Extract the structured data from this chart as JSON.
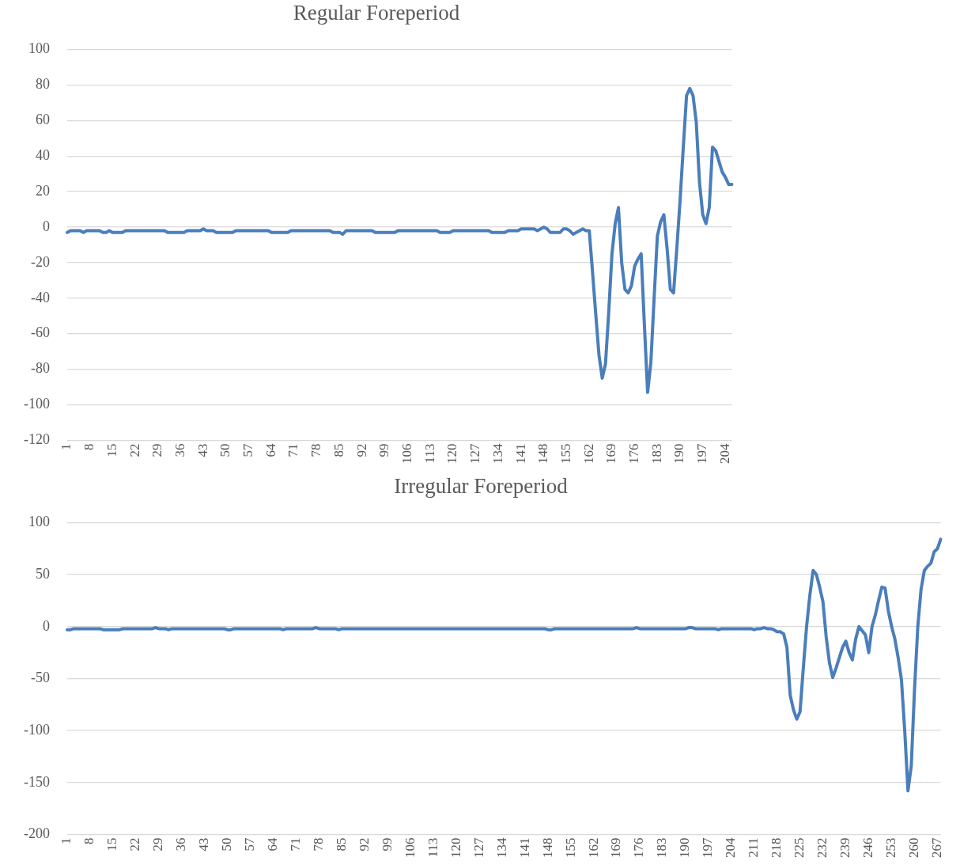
{
  "chart_data": [
    {
      "type": "line",
      "title": "Regular Foreperiod",
      "color": "#4a7ebb",
      "grid": "y",
      "ylim": [
        -120,
        100
      ],
      "yticks": [
        -120,
        -100,
        -80,
        -60,
        -40,
        -20,
        0,
        20,
        40,
        60,
        80,
        100
      ],
      "categories": [
        "1",
        null,
        null,
        null,
        null,
        null,
        null,
        "8",
        null,
        null,
        null,
        null,
        null,
        null,
        "15",
        null,
        null,
        null,
        null,
        null,
        null,
        "22",
        null,
        null,
        null,
        null,
        null,
        null,
        "29",
        null,
        null,
        null,
        null,
        null,
        null,
        "36",
        null,
        null,
        null,
        null,
        null,
        null,
        "43",
        null,
        null,
        null,
        null,
        null,
        null,
        "50",
        null,
        null,
        null,
        null,
        null,
        null,
        "57",
        null,
        null,
        null,
        null,
        null,
        null,
        "64",
        null,
        null,
        null,
        null,
        null,
        null,
        "71",
        null,
        null,
        null,
        null,
        null,
        null,
        "78",
        null,
        null,
        null,
        null,
        null,
        null,
        "85",
        null,
        null,
        null,
        null,
        null,
        null,
        "92",
        null,
        null,
        null,
        null,
        null,
        null,
        "99",
        null,
        null,
        null,
        null,
        null,
        null,
        "106",
        null,
        null,
        null,
        null,
        null,
        null,
        "113",
        null,
        null,
        null,
        null,
        null,
        null,
        "120",
        null,
        null,
        null,
        null,
        null,
        null,
        "127",
        null,
        null,
        null,
        null,
        null,
        null,
        "134",
        null,
        null,
        null,
        null,
        null,
        null,
        "141",
        null,
        null,
        null,
        null,
        null,
        null,
        "148",
        null,
        null,
        null,
        null,
        null,
        null,
        "155",
        null,
        null,
        null,
        null,
        null,
        null,
        "162",
        null,
        null,
        null,
        null,
        null,
        null,
        "169",
        null,
        null,
        null,
        null,
        null,
        null,
        "176",
        null,
        null,
        null,
        null,
        null,
        null,
        "183",
        null,
        null,
        null,
        null,
        null,
        null,
        "190",
        null,
        null,
        null,
        null,
        null,
        null,
        "197",
        null,
        null,
        null,
        null,
        null,
        null,
        "204",
        null,
        null
      ],
      "values": [
        -3,
        -2,
        -2,
        -2,
        -2,
        -3,
        -2,
        -2,
        -2,
        -2,
        -2,
        -3,
        -3,
        -2,
        -3,
        -3,
        -3,
        -3,
        -2,
        -2,
        -2,
        -2,
        -2,
        -2,
        -2,
        -2,
        -2,
        -2,
        -2,
        -2,
        -2,
        -3,
        -3,
        -3,
        -3,
        -3,
        -3,
        -2,
        -2,
        -2,
        -2,
        -2,
        -1,
        -2,
        -2,
        -2,
        -3,
        -3,
        -3,
        -3,
        -3,
        -3,
        -2,
        -2,
        -2,
        -2,
        -2,
        -2,
        -2,
        -2,
        -2,
        -2,
        -2,
        -3,
        -3,
        -3,
        -3,
        -3,
        -3,
        -2,
        -2,
        -2,
        -2,
        -2,
        -2,
        -2,
        -2,
        -2,
        -2,
        -2,
        -2,
        -2,
        -3,
        -3,
        -3,
        -4,
        -2,
        -2,
        -2,
        -2,
        -2,
        -2,
        -2,
        -2,
        -2,
        -3,
        -3,
        -3,
        -3,
        -3,
        -3,
        -3,
        -2,
        -2,
        -2,
        -2,
        -2,
        -2,
        -2,
        -2,
        -2,
        -2,
        -2,
        -2,
        -2,
        -3,
        -3,
        -3,
        -3,
        -2,
        -2,
        -2,
        -2,
        -2,
        -2,
        -2,
        -2,
        -2,
        -2,
        -2,
        -2,
        -3,
        -3,
        -3,
        -3,
        -3,
        -2,
        -2,
        -2,
        -2,
        -1,
        -1,
        -1,
        -1,
        -1,
        -2,
        -1,
        0,
        -1,
        -3,
        -3,
        -3,
        -3,
        -1,
        -1,
        -2,
        -4,
        -3,
        -2,
        -1,
        -2,
        -2,
        -25,
        -49,
        -72,
        -85,
        -77,
        -48,
        -15,
        2,
        11,
        -20,
        -35,
        -37,
        -33,
        -22,
        -18,
        -15,
        -55,
        -93,
        -76,
        -40,
        -5,
        3,
        7,
        -12,
        -35,
        -37,
        -12,
        15,
        45,
        74,
        78,
        74,
        59,
        25,
        7,
        2,
        11,
        45,
        43,
        37,
        31,
        28,
        24,
        24
      ]
    },
    {
      "type": "line",
      "title": "Irregular Foreperiod",
      "color": "#4a7ebb",
      "grid": "y",
      "ylim": [
        -200,
        100
      ],
      "yticks": [
        -200,
        -150,
        -100,
        -50,
        0,
        50,
        100
      ],
      "categories": [
        "1",
        null,
        null,
        null,
        null,
        null,
        null,
        "8",
        null,
        null,
        null,
        null,
        null,
        null,
        "15",
        null,
        null,
        null,
        null,
        null,
        null,
        "22",
        null,
        null,
        null,
        null,
        null,
        null,
        "29",
        null,
        null,
        null,
        null,
        null,
        null,
        "36",
        null,
        null,
        null,
        null,
        null,
        null,
        "43",
        null,
        null,
        null,
        null,
        null,
        null,
        "50",
        null,
        null,
        null,
        null,
        null,
        null,
        "57",
        null,
        null,
        null,
        null,
        null,
        null,
        "64",
        null,
        null,
        null,
        null,
        null,
        null,
        "71",
        null,
        null,
        null,
        null,
        null,
        null,
        "78",
        null,
        null,
        null,
        null,
        null,
        null,
        "85",
        null,
        null,
        null,
        null,
        null,
        null,
        "92",
        null,
        null,
        null,
        null,
        null,
        null,
        "99",
        null,
        null,
        null,
        null,
        null,
        null,
        "106",
        null,
        null,
        null,
        null,
        null,
        null,
        "113",
        null,
        null,
        null,
        null,
        null,
        null,
        "120",
        null,
        null,
        null,
        null,
        null,
        null,
        "127",
        null,
        null,
        null,
        null,
        null,
        null,
        "134",
        null,
        null,
        null,
        null,
        null,
        null,
        "141",
        null,
        null,
        null,
        null,
        null,
        null,
        "148",
        null,
        null,
        null,
        null,
        null,
        null,
        "155",
        null,
        null,
        null,
        null,
        null,
        null,
        "162",
        null,
        null,
        null,
        null,
        null,
        null,
        "169",
        null,
        null,
        null,
        null,
        null,
        null,
        "176",
        null,
        null,
        null,
        null,
        null,
        null,
        "183",
        null,
        null,
        null,
        null,
        null,
        null,
        "190",
        null,
        null,
        null,
        null,
        null,
        null,
        "197",
        null,
        null,
        null,
        null,
        null,
        null,
        "204",
        null,
        null,
        null,
        null,
        null,
        null,
        "211",
        null,
        null,
        null,
        null,
        null,
        null,
        "218",
        null,
        null,
        null,
        null,
        null,
        null,
        "225",
        null,
        null,
        null,
        null,
        null,
        null,
        "232",
        null,
        null,
        null,
        null,
        null,
        null,
        "239",
        null,
        null,
        null,
        null,
        null,
        null,
        "246",
        null,
        null,
        null,
        null,
        null,
        null,
        "253",
        null,
        null,
        null,
        null,
        null,
        null,
        "260",
        null,
        null,
        null,
        null,
        null,
        null,
        "267",
        null
      ],
      "values": [
        -3,
        -3,
        -2,
        -2,
        -2,
        -2,
        -2,
        -2,
        -2,
        -2,
        -2,
        -3,
        -3,
        -3,
        -3,
        -3,
        -3,
        -2,
        -2,
        -2,
        -2,
        -2,
        -2,
        -2,
        -2,
        -2,
        -2,
        -1,
        -2,
        -2,
        -2,
        -3,
        -2,
        -2,
        -2,
        -2,
        -2,
        -2,
        -2,
        -2,
        -2,
        -2,
        -2,
        -2,
        -2,
        -2,
        -2,
        -2,
        -2,
        -3,
        -3,
        -2,
        -2,
        -2,
        -2,
        -2,
        -2,
        -2,
        -2,
        -2,
        -2,
        -2,
        -2,
        -2,
        -2,
        -2,
        -3,
        -2,
        -2,
        -2,
        -2,
        -2,
        -2,
        -2,
        -2,
        -2,
        -1,
        -2,
        -2,
        -2,
        -2,
        -2,
        -2,
        -3,
        -2,
        -2,
        -2,
        -2,
        -2,
        -2,
        -2,
        -2,
        -2,
        -2,
        -2,
        -2,
        -2,
        -2,
        -2,
        -2,
        -2,
        -2,
        -2,
        -2,
        -2,
        -2,
        -2,
        -2,
        -2,
        -2,
        -2,
        -2,
        -2,
        -2,
        -2,
        -2,
        -2,
        -2,
        -2,
        -2,
        -2,
        -2,
        -2,
        -2,
        -2,
        -2,
        -2,
        -2,
        -2,
        -2,
        -2,
        -2,
        -2,
        -2,
        -2,
        -2,
        -2,
        -2,
        -2,
        -2,
        -2,
        -2,
        -2,
        -2,
        -2,
        -2,
        -2,
        -3,
        -3,
        -2,
        -2,
        -2,
        -2,
        -2,
        -2,
        -2,
        -2,
        -2,
        -2,
        -2,
        -2,
        -2,
        -2,
        -2,
        -2,
        -2,
        -2,
        -2,
        -2,
        -2,
        -2,
        -2,
        -2,
        -2,
        -1,
        -2,
        -2,
        -2,
        -2,
        -2,
        -2,
        -2,
        -2,
        -2,
        -2,
        -2,
        -2,
        -2,
        -2,
        -2,
        -1,
        -1,
        -2,
        -2,
        -2,
        -2,
        -2,
        -2,
        -2,
        -3,
        -2,
        -2,
        -2,
        -2,
        -2,
        -2,
        -2,
        -2,
        -2,
        -2,
        -3,
        -2,
        -2,
        -1,
        -2,
        -2,
        -3,
        -5,
        -5,
        -7,
        -20,
        -66,
        -80,
        -89,
        -82,
        -40,
        0,
        30,
        54,
        50,
        38,
        24,
        -10,
        -35,
        -49,
        -40,
        -30,
        -20,
        -14,
        -25,
        -32,
        -12,
        0,
        -4,
        -8,
        -25,
        0,
        11,
        25,
        38,
        37,
        15,
        0,
        -12,
        -30,
        -51,
        -100,
        -158,
        -134,
        -60,
        0,
        36,
        54,
        58,
        61,
        72,
        75,
        84
      ]
    }
  ]
}
